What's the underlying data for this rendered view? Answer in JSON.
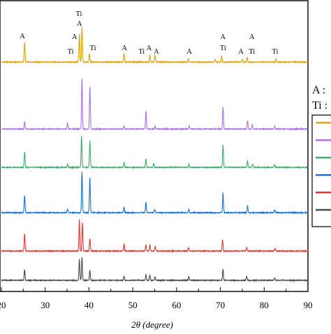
{
  "chart_data": {
    "type": "line",
    "xlabel": "2θ (degree)",
    "xlim": [
      20,
      90
    ],
    "x_ticks": [
      20,
      30,
      40,
      50,
      60,
      70,
      80,
      90
    ],
    "x_tick_labels": [
      "20",
      "30",
      "40",
      "50",
      "60",
      "70",
      "80",
      "90"
    ],
    "series": [
      {
        "color": "#d6a21a",
        "offset": 0,
        "peaks": [
          [
            25.3,
            28
          ],
          [
            37.8,
            40
          ],
          [
            38.4,
            50
          ],
          [
            40.1,
            12
          ],
          [
            48.0,
            12
          ],
          [
            53.9,
            10
          ],
          [
            55.1,
            10
          ],
          [
            62.7,
            5
          ],
          [
            68.8,
            4
          ],
          [
            70.3,
            9
          ],
          [
            75.0,
            4
          ],
          [
            76.1,
            7
          ],
          [
            82.7,
            4
          ]
        ]
      },
      {
        "color": "#a774d9",
        "offset": 1,
        "peaks": [
          [
            25.3,
            10
          ],
          [
            35.1,
            8
          ],
          [
            38.4,
            72
          ],
          [
            40.2,
            60
          ],
          [
            48.0,
            4
          ],
          [
            53.0,
            25
          ],
          [
            55.1,
            4
          ],
          [
            62.9,
            4
          ],
          [
            70.6,
            32
          ],
          [
            76.2,
            12
          ],
          [
            77.3,
            7
          ],
          [
            82.4,
            4
          ]
        ]
      },
      {
        "color": "#3fac6a",
        "offset": 2,
        "peaks": [
          [
            25.3,
            22
          ],
          [
            35.1,
            5
          ],
          [
            38.3,
            45
          ],
          [
            40.2,
            38
          ],
          [
            48.0,
            8
          ],
          [
            53.0,
            12
          ],
          [
            54.8,
            6
          ],
          [
            62.8,
            5
          ],
          [
            70.6,
            33
          ],
          [
            76.2,
            10
          ],
          [
            77.4,
            5
          ],
          [
            82.4,
            4
          ]
        ]
      },
      {
        "color": "#1f6fc7",
        "offset": 3,
        "peaks": [
          [
            25.3,
            25
          ],
          [
            35.1,
            5
          ],
          [
            38.4,
            58
          ],
          [
            40.2,
            50
          ],
          [
            48.0,
            8
          ],
          [
            53.0,
            15
          ],
          [
            55.0,
            5
          ],
          [
            62.8,
            5
          ],
          [
            70.6,
            28
          ],
          [
            76.2,
            10
          ],
          [
            82.4,
            4
          ]
        ]
      },
      {
        "color": "#e0372f",
        "offset": 4,
        "peaks": [
          [
            25.3,
            25
          ],
          [
            37.8,
            45
          ],
          [
            38.5,
            40
          ],
          [
            40.2,
            18
          ],
          [
            48.0,
            10
          ],
          [
            53.0,
            9
          ],
          [
            53.9,
            9
          ],
          [
            55.1,
            7
          ],
          [
            62.7,
            5
          ],
          [
            70.5,
            16
          ],
          [
            76.0,
            5
          ],
          [
            82.5,
            4
          ]
        ]
      },
      {
        "color": "#4a4a4a",
        "offset": 5,
        "peaks": [
          [
            25.3,
            15
          ],
          [
            37.8,
            30
          ],
          [
            38.4,
            33
          ],
          [
            40.2,
            14
          ],
          [
            48.0,
            6
          ],
          [
            53.0,
            8
          ],
          [
            53.9,
            8
          ],
          [
            55.1,
            5
          ],
          [
            62.8,
            5
          ],
          [
            70.6,
            16
          ],
          [
            76.0,
            6
          ],
          [
            82.4,
            3
          ]
        ]
      }
    ],
    "annotations": [
      {
        "text": "A",
        "x": 24.8,
        "row": 0
      },
      {
        "text": "Ti",
        "x": 37.7,
        "row": -1
      },
      {
        "text": "A",
        "x": 37.8,
        "row": 1
      },
      {
        "text": "A",
        "x": 36.7,
        "row": 2
      },
      {
        "text": "Ti",
        "x": 35.8,
        "row": 4
      },
      {
        "text": "Ti",
        "x": 40.9,
        "row": 3
      },
      {
        "text": "A",
        "x": 48.1,
        "row": 3
      },
      {
        "text": "Ti",
        "x": 52.0,
        "row": 4
      },
      {
        "text": "A",
        "x": 53.7,
        "row": 3
      },
      {
        "text": "A",
        "x": 55.4,
        "row": 4
      },
      {
        "text": "A",
        "x": 62.9,
        "row": 4
      },
      {
        "text": "A",
        "x": 70.6,
        "row": 2
      },
      {
        "text": "Ti",
        "x": 70.6,
        "row": 3
      },
      {
        "text": "A",
        "x": 74.7,
        "row": 4
      },
      {
        "text": "A",
        "x": 77.2,
        "row": 2
      },
      {
        "text": "Ti",
        "x": 77.2,
        "row": 4
      },
      {
        "text": "Ti",
        "x": 82.5,
        "row": 4
      }
    ],
    "legend": {
      "placement": "right",
      "key_labels": [
        "A :",
        "Ti :"
      ],
      "swatch_colors": [
        "#d6a21a",
        "#a774d9",
        "#3fac6a",
        "#1f6fc7",
        "#e0372f",
        "#4a4a4a"
      ]
    }
  }
}
